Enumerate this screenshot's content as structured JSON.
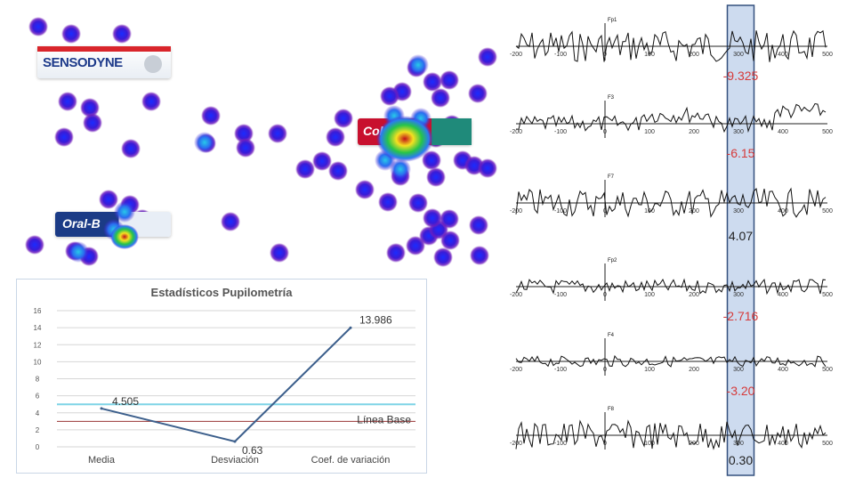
{
  "heatmap": {
    "products": [
      {
        "name": "sensodyne",
        "label": "SENSODYNE"
      },
      {
        "name": "colgate",
        "label": "Colgate"
      },
      {
        "name": "oral-b",
        "label": "Oral-B"
      }
    ]
  },
  "chart_data": [
    {
      "type": "line",
      "title": "Estadísticos Pupilometría",
      "categories": [
        "Media",
        "Desviación",
        "Coef. de variación"
      ],
      "series": [
        {
          "values": [
            4.505,
            0.63,
            13.986
          ]
        }
      ],
      "data_labels": [
        "4.505",
        "0.63",
        "13.986"
      ],
      "ylim": [
        0,
        16
      ],
      "yticks": [
        "0",
        "2",
        "4",
        "6",
        "8",
        "10",
        "12",
        "14",
        "16"
      ],
      "baseline": {
        "label": "Línea Base",
        "value": 3
      },
      "grid": true,
      "colors": {
        "line": "#3c5f8c",
        "baseline": "#9a3434",
        "highlight": "#7fd4e6"
      }
    },
    {
      "type": "line",
      "xticks": [
        "-200",
        "-100",
        "0",
        "100",
        "200",
        "300",
        "400",
        "500"
      ],
      "xlim": [
        -200,
        500
      ],
      "highlight_window": [
        275,
        335
      ],
      "channels": [
        {
          "name": "Fp1",
          "value": "-9.325",
          "value_color": "#d63a3a"
        },
        {
          "name": "F3",
          "value": "-6.15",
          "value_color": "#d63a3a"
        },
        {
          "name": "F7",
          "value": "4.07",
          "value_color": "#222222"
        },
        {
          "name": "Fp2",
          "value": "-2.716",
          "value_color": "#d63a3a"
        },
        {
          "name": "F4",
          "value": "-3.20",
          "value_color": "#d63a3a"
        },
        {
          "name": "F8",
          "value": "0.30",
          "value_color": "#222222"
        }
      ],
      "colors": {
        "window": "#b8cce8",
        "window_border": "#34507e",
        "trace": "#111111"
      }
    }
  ]
}
